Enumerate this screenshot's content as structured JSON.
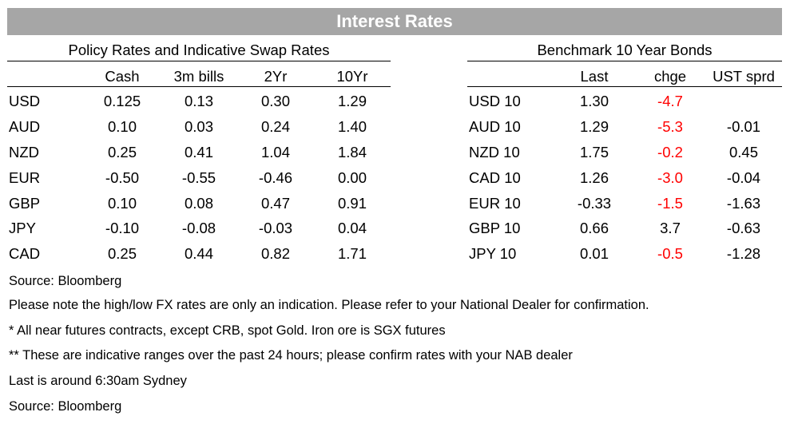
{
  "title": "Interest Rates",
  "policy": {
    "heading": "Policy Rates and Indicative Swap Rates",
    "columns": [
      "Cash",
      "3m bills",
      "2Yr",
      "10Yr"
    ],
    "rows": [
      {
        "label": "USD",
        "values": [
          "0.125",
          "0.13",
          "0.30",
          "1.29"
        ]
      },
      {
        "label": "AUD",
        "values": [
          "0.10",
          "0.03",
          "0.24",
          "1.40"
        ]
      },
      {
        "label": "NZD",
        "values": [
          "0.25",
          "0.41",
          "1.04",
          "1.84"
        ]
      },
      {
        "label": "EUR",
        "values": [
          "-0.50",
          "-0.55",
          "-0.46",
          "0.00"
        ]
      },
      {
        "label": "GBP",
        "values": [
          "0.10",
          "0.08",
          "0.47",
          "0.91"
        ]
      },
      {
        "label": "JPY",
        "values": [
          "-0.10",
          "-0.08",
          "-0.03",
          "0.04"
        ]
      },
      {
        "label": "CAD",
        "values": [
          "0.25",
          "0.44",
          "0.82",
          "1.71"
        ]
      }
    ]
  },
  "bonds": {
    "heading": "Benchmark 10 Year Bonds",
    "columns": [
      "Last",
      "chge",
      "UST sprd"
    ],
    "rows": [
      {
        "label": "USD 10",
        "last": "1.30",
        "chge": "-4.7",
        "sprd": ""
      },
      {
        "label": "AUD 10",
        "last": "1.29",
        "chge": "-5.3",
        "sprd": "-0.01"
      },
      {
        "label": "NZD 10",
        "last": "1.75",
        "chge": "-0.2",
        "sprd": "0.45"
      },
      {
        "label": "CAD 10",
        "last": "1.26",
        "chge": "-3.0",
        "sprd": "-0.04"
      },
      {
        "label": "EUR 10",
        "last": "-0.33",
        "chge": "-1.5",
        "sprd": "-1.63"
      },
      {
        "label": "GBP 10",
        "last": "0.66",
        "chge": "3.7",
        "sprd": "-0.63"
      },
      {
        "label": "JPY 10",
        "last": "0.01",
        "chge": "-0.5",
        "sprd": "-1.28"
      }
    ]
  },
  "colors": {
    "banner": "#a6a6a6",
    "negative_change": "#ff0000"
  },
  "notes": [
    "Source: Bloomberg",
    "Please note the high/low FX rates are only an indication. Please refer to your National Dealer for confirmation.",
    "* All near futures contracts, except CRB, spot Gold.  Iron ore is SGX futures",
    "** These are indicative ranges over the past 24 hours; please confirm rates with your NAB dealer",
    "Last is around 6:30am Sydney",
    "Source: Bloomberg"
  ]
}
